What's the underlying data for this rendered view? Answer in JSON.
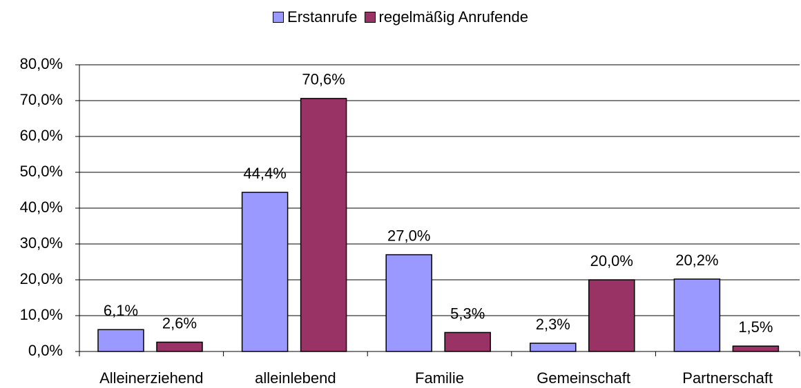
{
  "chart_data": {
    "type": "bar",
    "categories": [
      "Alleinerziehend",
      "alleinlebend",
      "Familie",
      "Gemeinschaft",
      "Partnerschaft"
    ],
    "series": [
      {
        "name": "Erstanrufe",
        "color": "#9999ff",
        "values": [
          6.1,
          44.4,
          27.0,
          2.3,
          20.2
        ],
        "value_labels": [
          "6,1%",
          "44,4%",
          "27,0%",
          "2,3%",
          "20,2%"
        ]
      },
      {
        "name": "regelmäßig Anrufende",
        "color": "#993366",
        "values": [
          2.6,
          70.6,
          5.3,
          20.0,
          1.5
        ],
        "value_labels": [
          "2,6%",
          "70,6%",
          "5,3%",
          "20,0%",
          "1,5%"
        ]
      }
    ],
    "ylim": [
      0,
      80
    ],
    "yticks": [
      {
        "value": 0,
        "label": "0,0%"
      },
      {
        "value": 10,
        "label": "10,0%"
      },
      {
        "value": 20,
        "label": "20,0%"
      },
      {
        "value": 30,
        "label": "30,0%"
      },
      {
        "value": 40,
        "label": "40,0%"
      },
      {
        "value": 50,
        "label": "50,0%"
      },
      {
        "value": 60,
        "label": "60,0%"
      },
      {
        "value": 70,
        "label": "70,0%"
      },
      {
        "value": 80,
        "label": "80,0%"
      }
    ],
    "grid": true,
    "legend": "top"
  }
}
